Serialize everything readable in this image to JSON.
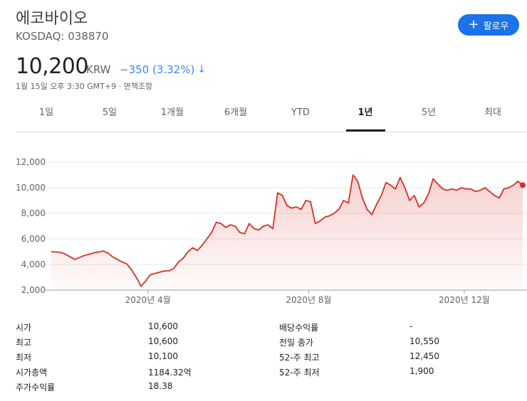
{
  "header": {
    "company": "에코바이오",
    "ticker": "KOSDAQ: 038870",
    "follow_label": "팔로우",
    "follow_plus": "+"
  },
  "quote": {
    "price": "10,200",
    "currency": "KRW",
    "change": "−350 (3.32%)",
    "change_arrow": "↓",
    "timestamp": "1월 15일 오후 3:30 GMT+9 · 면책조항"
  },
  "tabs": [
    {
      "label": "1일",
      "active": false
    },
    {
      "label": "5일",
      "active": false
    },
    {
      "label": "1개월",
      "active": false
    },
    {
      "label": "6개월",
      "active": false
    },
    {
      "label": "YTD",
      "active": false
    },
    {
      "label": "1년",
      "active": true
    },
    {
      "label": "5년",
      "active": false
    },
    {
      "label": "최대",
      "active": false
    }
  ],
  "chart_data": {
    "type": "area",
    "ylim": [
      2000,
      12000
    ],
    "yticks": [
      2000,
      4000,
      6000,
      8000,
      10000,
      12000
    ],
    "ytick_labels": [
      "2,000",
      "4,000",
      "6,000",
      "8,000",
      "10,000",
      "12,000"
    ],
    "xtick_labels": [
      "2020년 4월",
      "2020년 8월",
      "2020년 12월"
    ],
    "xtick_positions": [
      0.205,
      0.546,
      0.876
    ],
    "line_color": "#d93025",
    "grid": true,
    "x": [
      0.0,
      0.02,
      0.03,
      0.05,
      0.07,
      0.09,
      0.11,
      0.12,
      0.13,
      0.15,
      0.16,
      0.17,
      0.18,
      0.185,
      0.19,
      0.2,
      0.21,
      0.22,
      0.23,
      0.24,
      0.25,
      0.26,
      0.27,
      0.28,
      0.29,
      0.3,
      0.31,
      0.32,
      0.33,
      0.34,
      0.35,
      0.36,
      0.37,
      0.38,
      0.39,
      0.4,
      0.41,
      0.42,
      0.43,
      0.44,
      0.45,
      0.46,
      0.47,
      0.48,
      0.49,
      0.5,
      0.51,
      0.52,
      0.53,
      0.54,
      0.55,
      0.56,
      0.57,
      0.58,
      0.59,
      0.6,
      0.61,
      0.62,
      0.63,
      0.64,
      0.65,
      0.66,
      0.67,
      0.68,
      0.69,
      0.7,
      0.71,
      0.72,
      0.73,
      0.74,
      0.75,
      0.76,
      0.77,
      0.78,
      0.79,
      0.8,
      0.81,
      0.82,
      0.83,
      0.84,
      0.85,
      0.86,
      0.87,
      0.88,
      0.89,
      0.9,
      0.91,
      0.92,
      0.93,
      0.94,
      0.95,
      0.96,
      0.97,
      0.98,
      0.99,
      1.0
    ],
    "values": [
      5000,
      4950,
      4800,
      4400,
      4700,
      4900,
      5050,
      4900,
      4600,
      4200,
      4050,
      3600,
      3000,
      2700,
      2300,
      2700,
      3200,
      3300,
      3400,
      3500,
      3500,
      3700,
      4200,
      4500,
      5000,
      5300,
      5100,
      5500,
      6000,
      6500,
      7300,
      7200,
      6900,
      7100,
      7000,
      6500,
      6400,
      7200,
      6800,
      6700,
      7000,
      7100,
      6800,
      9600,
      9400,
      8600,
      8400,
      8500,
      8300,
      9000,
      8900,
      7200,
      7400,
      7700,
      7800,
      8000,
      8300,
      9000,
      8800,
      11000,
      10500,
      9200,
      8300,
      7900,
      8700,
      9400,
      10400,
      10200,
      9900,
      10800,
      10000,
      9000,
      9400,
      8500,
      8800,
      9500,
      10700,
      10300,
      9900,
      9800,
      9900,
      9800,
      10000,
      9900,
      9900,
      9700,
      9800,
      10000,
      9700,
      9400,
      9200,
      9900,
      10000,
      10200,
      10500,
      10200
    ],
    "last_value": 10200
  },
  "stats": [
    {
      "label": "시가",
      "value": "10,600"
    },
    {
      "label": "최고",
      "value": "10,600"
    },
    {
      "label": "최저",
      "value": "10,100"
    },
    {
      "label": "시가총액",
      "value": "1184.32억"
    },
    {
      "label": "주가수익률",
      "value": "18.38"
    },
    {
      "label": "배당수익률",
      "value": "-"
    },
    {
      "label": "전일 종가",
      "value": "10,550"
    },
    {
      "label": "52-주 최고",
      "value": "12,450"
    },
    {
      "label": "52-주 최저",
      "value": "1,900"
    }
  ]
}
